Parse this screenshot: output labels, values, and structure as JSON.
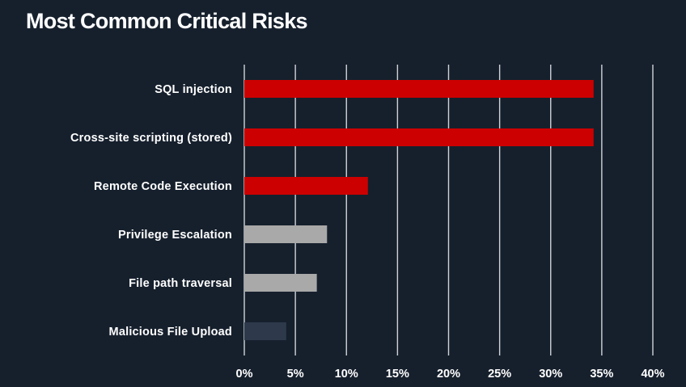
{
  "chart_data": {
    "type": "bar",
    "orientation": "horizontal",
    "title": "Most Common Critical Risks",
    "xlabel": "",
    "ylabel": "",
    "categories": [
      "SQL injection",
      "Cross-site scripting (stored)",
      "Remote Code Execution",
      "Privilege Escalation",
      "File path traversal",
      "Malicious File Upload"
    ],
    "values": [
      34.2,
      34.2,
      12.1,
      8.1,
      7.1,
      4.1
    ],
    "bar_colors": [
      "#cc0000",
      "#cc0000",
      "#cc0000",
      "#a9a9a9",
      "#a9a9a9",
      "#2e3a4b"
    ],
    "xlim": [
      0,
      40
    ],
    "xticks": [
      0,
      5,
      10,
      15,
      20,
      25,
      30,
      35,
      40
    ],
    "xtick_labels": [
      "0%",
      "5%",
      "10%",
      "15%",
      "20%",
      "25%",
      "30%",
      "35%",
      "40%"
    ],
    "grid": "vertical",
    "legend": "none"
  },
  "colors": {
    "background": "#16202d",
    "text": "#ffffff",
    "gridline": "#cfd3d8"
  }
}
